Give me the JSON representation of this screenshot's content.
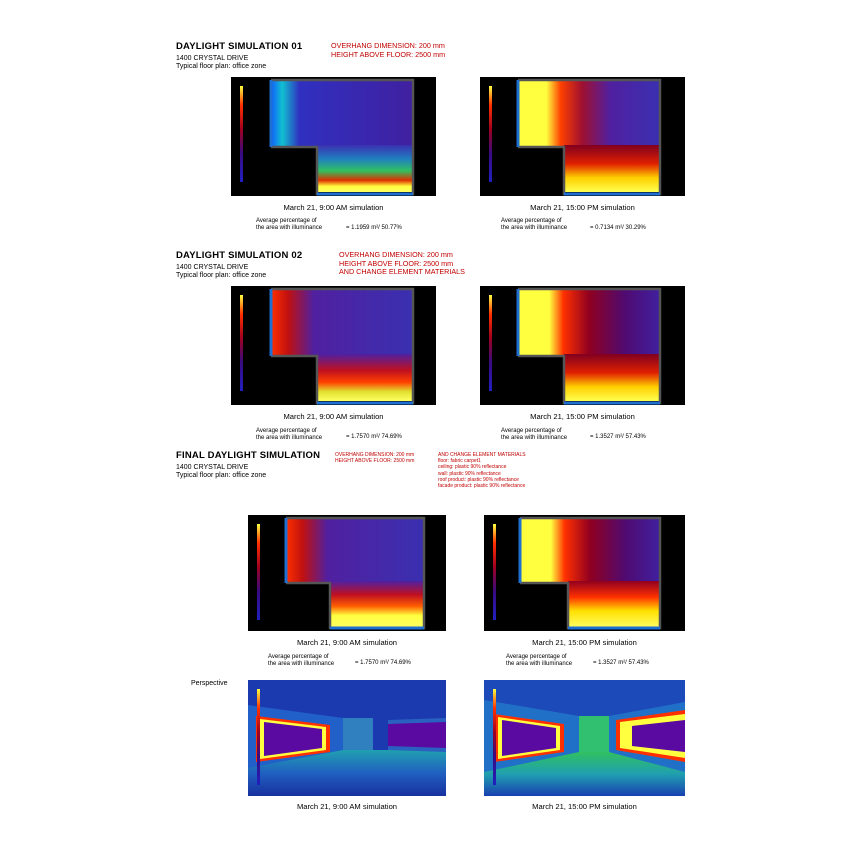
{
  "sim01": {
    "title": "DAYLIGHT SIMULATION 01",
    "sub1": "1400 CRYSTAL DRIVE",
    "sub2": "Typical floor plan: office zone",
    "params": [
      "OVERHANG DIMENSION: 200 mm",
      "HEIGHT ABOVE FLOOR: 2500 mm"
    ],
    "left": {
      "caption": "March 21, 9:00 AM simulation",
      "stat1": "Average percentage of",
      "stat2": "the area with illuminance",
      "value": "= 1.1959 m²/ 50.77%"
    },
    "right": {
      "caption": "March 21, 15:00 PM simulation",
      "stat1": "Average percentage of",
      "stat2": "the area with illuminance",
      "value": "= 0.7134 m²/ 30.29%"
    }
  },
  "sim02": {
    "title": "DAYLIGHT SIMULATION 02",
    "sub1": "1400 CRYSTAL DRIVE",
    "sub2": "Typical floor plan: office zone",
    "params": [
      "OVERHANG DIMENSION: 200 mm",
      "HEIGHT ABOVE FLOOR: 2500 mm",
      "AND CHANGE ELEMENT MATERIALS"
    ],
    "left": {
      "caption": "March 21, 9:00 AM simulation",
      "stat1": "Average percentage of",
      "stat2": "the area with illuminance",
      "value": "= 1.7570 m²/ 74.69%"
    },
    "right": {
      "caption": "March 21, 15:00 PM simulation",
      "stat1": "Average percentage of",
      "stat2": "the area with illuminance",
      "value": "= 1.3527 m²/ 57.43%"
    }
  },
  "final": {
    "title": "FINAL DAYLIGHT SIMULATION",
    "sub1": "1400 CRYSTAL DRIVE",
    "sub2": "Typical floor plan: office zone",
    "params": [
      "OVERHANG DIMENSION: 200 mm",
      "HEIGHT ABOVE FLOOR: 2500 mm"
    ],
    "materials": [
      "AND CHANGE ELEMENT MATERIALS",
      "floor: fabric carpet1",
      "ceiling: plastic 90% reflectance",
      "wall: plastic 90% reflectance",
      "roof product: plastic 90% reflectance",
      "facade product: plastic 90% reflectance"
    ],
    "left": {
      "caption": "March 21, 9:00 AM simulation",
      "stat1": "Average percentage of",
      "stat2": "the area with illuminance",
      "value": "= 1.7570 m²/ 74.69%"
    },
    "right": {
      "caption": "March 21, 15:00 PM simulation",
      "stat1": "Average percentage of",
      "stat2": "the area with illuminance",
      "value": "= 1.3527 m²/ 57.43%"
    }
  },
  "perspective": {
    "label": "Perspective",
    "left_caption": "March 21, 9:00 AM simulation",
    "right_caption": "March 21, 15:00 PM simulation"
  },
  "colors": {
    "accent_red": "#c00000",
    "panel_bg": "#000000",
    "wall_blue": "#1e6fd0"
  }
}
